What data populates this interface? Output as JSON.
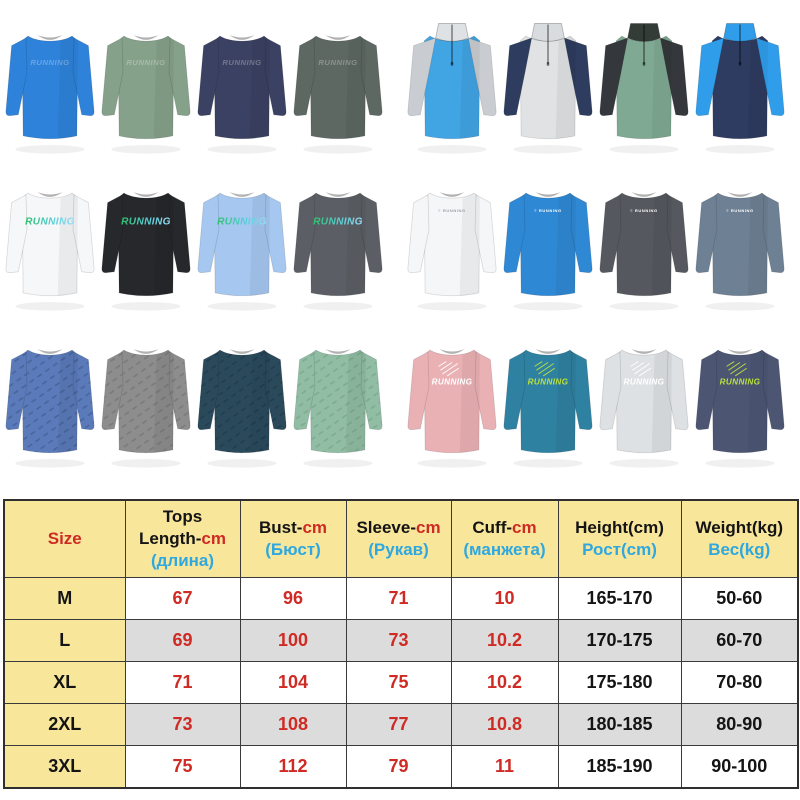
{
  "page": {
    "background": "#ffffff"
  },
  "products": {
    "print_text": "RUNNING",
    "rows": [
      {
        "items": [
          {
            "name": "blue-long-sleeve-tee",
            "type": "crew",
            "body": "#2e82da",
            "print": "tonal"
          },
          {
            "name": "sage-green-long-sleeve-tee",
            "type": "crew",
            "body": "#85a18a",
            "print": "tonal"
          },
          {
            "name": "navy-long-sleeve-tee",
            "type": "crew",
            "body": "#3b4162",
            "print": "tonal"
          },
          {
            "name": "dark-green-long-sleeve-tee",
            "type": "crew",
            "body": "#5d6862",
            "print": "tonal"
          },
          {
            "name": "blue-gray-quarter-zip",
            "type": "zip",
            "body": "#41a5e4",
            "sleeve": "#c9cdd2",
            "collar": "#dfe2e5"
          },
          {
            "name": "gray-navy-quarter-zip",
            "type": "zip",
            "body": "#e0e2e4",
            "sleeve": "#2e3c5f",
            "collar": "#d9dcdf"
          },
          {
            "name": "green-black-quarter-zip",
            "type": "zip",
            "body": "#7fa993",
            "sleeve": "#34383c",
            "collar": "#343c38"
          },
          {
            "name": "navy-blue-quarter-zip",
            "type": "zip",
            "body": "#2e3c61",
            "sleeve": "#2f9dea",
            "collar": "#2f9dea"
          }
        ]
      },
      {
        "items": [
          {
            "name": "white-running-tee",
            "type": "crew",
            "body": "#f6f7f9",
            "print": "gradient"
          },
          {
            "name": "black-running-tee",
            "type": "crew",
            "body": "#26282b",
            "print": "gradient"
          },
          {
            "name": "light-blue-running-tee",
            "type": "crew",
            "body": "#a5c7f0",
            "print": "gradient"
          },
          {
            "name": "gray-running-tee",
            "type": "crew",
            "body": "#5b5f65",
            "print": "gradient"
          },
          {
            "name": "white-logo-tee",
            "type": "crew",
            "body": "#f5f6f8",
            "print": "logo",
            "logo_color": "#9aa0a6"
          },
          {
            "name": "blue-logo-tee",
            "type": "crew",
            "body": "#2f88d4",
            "print": "logo",
            "logo_color": "#ffffff"
          },
          {
            "name": "charcoal-logo-tee",
            "type": "crew",
            "body": "#55585e",
            "print": "logo",
            "logo_color": "#ffffff"
          },
          {
            "name": "slate-logo-tee",
            "type": "crew",
            "body": "#6e8094",
            "print": "logo",
            "logo_color": "#ffffff"
          }
        ]
      },
      {
        "items": [
          {
            "name": "blue-dash-tee",
            "type": "crew",
            "body": "#5a7ab9",
            "pattern": "#49659e"
          },
          {
            "name": "gray-dash-tee",
            "type": "crew",
            "body": "#8d8d8d",
            "pattern": "#7b7b7b"
          },
          {
            "name": "dark-teal-dash-tee",
            "type": "crew",
            "body": "#2a4a5c",
            "pattern": "#213e4e"
          },
          {
            "name": "green-dash-tee",
            "type": "crew",
            "body": "#90bda3",
            "pattern": "#7eac91"
          },
          {
            "name": "pink-graphic-tee",
            "type": "crew",
            "body": "#eab1b5",
            "print": "graphic",
            "print_color": "#ffffff"
          },
          {
            "name": "teal-graphic-tee",
            "type": "crew",
            "body": "#2f81a1",
            "print": "graphic",
            "print_color": "#bce23f"
          },
          {
            "name": "light-gray-graphic-tee",
            "type": "crew",
            "body": "#dee1e3",
            "print": "graphic",
            "print_color": "#ffffff"
          },
          {
            "name": "navy-graphic-tee",
            "type": "crew",
            "body": "#4c5673",
            "print": "graphic",
            "print_color": "#bce23f"
          }
        ]
      }
    ]
  },
  "size_chart": {
    "colors": {
      "header_bg": "#f8e69b",
      "alt_row_bg": "#dcdcdc",
      "red": "#cf2a24",
      "blue": "#2fa8df",
      "black": "#141414",
      "border": "#3a3a3a"
    },
    "columns": [
      {
        "lines": [
          [
            {
              "t": "Size",
              "c": "red"
            }
          ]
        ]
      },
      {
        "lines": [
          [
            {
              "t": "Tops",
              "c": "black"
            }
          ],
          [
            {
              "t": "Length-",
              "c": "black"
            },
            {
              "t": "cm",
              "c": "red"
            }
          ],
          [
            {
              "t": "(длина)",
              "c": "blue"
            }
          ]
        ]
      },
      {
        "lines": [
          [
            {
              "t": "Bust-",
              "c": "black"
            },
            {
              "t": "cm",
              "c": "red"
            }
          ],
          [
            {
              "t": "(Бюст)",
              "c": "blue"
            }
          ]
        ]
      },
      {
        "lines": [
          [
            {
              "t": "Sleeve-",
              "c": "black"
            },
            {
              "t": "cm",
              "c": "red"
            }
          ],
          [
            {
              "t": "(Рукав)",
              "c": "blue"
            }
          ]
        ]
      },
      {
        "lines": [
          [
            {
              "t": "Cuff-",
              "c": "black"
            },
            {
              "t": "cm",
              "c": "red"
            }
          ],
          [
            {
              "t": "(манжета)",
              "c": "blue"
            }
          ]
        ]
      },
      {
        "lines": [
          [
            {
              "t": "Height(cm)",
              "c": "black"
            }
          ],
          [
            {
              "t": "Рост(cm)",
              "c": "blue"
            }
          ]
        ]
      },
      {
        "lines": [
          [
            {
              "t": "Weight(kg)",
              "c": "black"
            }
          ],
          [
            {
              "t": "Вес(kg)",
              "c": "blue"
            }
          ]
        ]
      }
    ],
    "rows": [
      {
        "size": "M",
        "values": [
          "67",
          "96",
          "71",
          "10",
          "165-170",
          "50-60"
        ]
      },
      {
        "size": "L",
        "values": [
          "69",
          "100",
          "73",
          "10.2",
          "170-175",
          "60-70"
        ]
      },
      {
        "size": "XL",
        "values": [
          "71",
          "104",
          "75",
          "10.2",
          "175-180",
          "70-80"
        ]
      },
      {
        "size": "2XL",
        "values": [
          "73",
          "108",
          "77",
          "10.8",
          "180-185",
          "80-90"
        ]
      },
      {
        "size": "3XL",
        "values": [
          "75",
          "112",
          "79",
          "11",
          "185-190",
          "90-100"
        ]
      }
    ]
  }
}
